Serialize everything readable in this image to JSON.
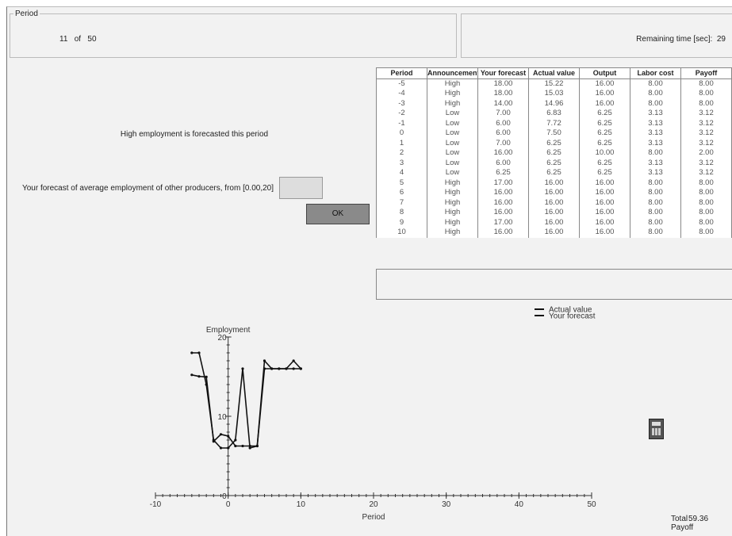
{
  "header": {
    "period_label": "Period",
    "current_period": "11",
    "of": "of",
    "total_periods": "50",
    "remaining_time_label": "Remaining time [sec]:",
    "remaining_time": "29"
  },
  "message": "High employment is forecasted this period",
  "forecast_prompt": "Your forecast of average employment of other producers, from [0.00,20]",
  "ok_button": "OK",
  "table": {
    "columns": [
      "Period",
      "Announcement",
      "Your forecast",
      "Actual value",
      "Output",
      "Labor cost",
      "Payoff"
    ],
    "rows": [
      [
        "-5",
        "High",
        "18.00",
        "15.22",
        "16.00",
        "8.00",
        "8.00"
      ],
      [
        "-4",
        "High",
        "18.00",
        "15.03",
        "16.00",
        "8.00",
        "8.00"
      ],
      [
        "-3",
        "High",
        "14.00",
        "14.96",
        "16.00",
        "8.00",
        "8.00"
      ],
      [
        "-2",
        "Low",
        "7.00",
        "6.83",
        "6.25",
        "3.13",
        "3.12"
      ],
      [
        "-1",
        "Low",
        "6.00",
        "7.72",
        "6.25",
        "3.13",
        "3.12"
      ],
      [
        "0",
        "Low",
        "6.00",
        "7.50",
        "6.25",
        "3.13",
        "3.12"
      ],
      [
        "1",
        "Low",
        "7.00",
        "6.25",
        "6.25",
        "3.13",
        "3.12"
      ],
      [
        "2",
        "Low",
        "16.00",
        "6.25",
        "10.00",
        "8.00",
        "2.00"
      ],
      [
        "3",
        "Low",
        "6.00",
        "6.25",
        "6.25",
        "3.13",
        "3.12"
      ],
      [
        "4",
        "Low",
        "6.25",
        "6.25",
        "6.25",
        "3.13",
        "3.12"
      ],
      [
        "5",
        "High",
        "17.00",
        "16.00",
        "16.00",
        "8.00",
        "8.00"
      ],
      [
        "6",
        "High",
        "16.00",
        "16.00",
        "16.00",
        "8.00",
        "8.00"
      ],
      [
        "7",
        "High",
        "16.00",
        "16.00",
        "16.00",
        "8.00",
        "8.00"
      ],
      [
        "8",
        "High",
        "16.00",
        "16.00",
        "16.00",
        "8.00",
        "8.00"
      ],
      [
        "9",
        "High",
        "17.00",
        "16.00",
        "16.00",
        "8.00",
        "8.00"
      ],
      [
        "10",
        "High",
        "16.00",
        "16.00",
        "16.00",
        "8.00",
        "8.00"
      ]
    ]
  },
  "chart": {
    "type": "line",
    "y_label": "Employment",
    "x_label": "Period",
    "x": [
      -5,
      -4,
      -3,
      -2,
      -1,
      0,
      1,
      2,
      3,
      4,
      5,
      6,
      7,
      8,
      9,
      10
    ],
    "series": [
      {
        "name": "Actual value",
        "color": "#111111",
        "values": [
          15.22,
          15.03,
          14.96,
          6.83,
          7.72,
          7.5,
          6.25,
          6.25,
          6.25,
          6.25,
          16,
          16,
          16,
          16,
          16,
          16
        ]
      },
      {
        "name": "Your forecast",
        "color": "#111111",
        "values": [
          18,
          18,
          14,
          7,
          6,
          6,
          7,
          16,
          6,
          6.25,
          17,
          16,
          16,
          16,
          17,
          16
        ]
      }
    ],
    "xlim": [
      -10,
      50
    ],
    "ylim": [
      0,
      20
    ],
    "xticks": [
      -10,
      0,
      10,
      20,
      30,
      40,
      50
    ],
    "yticks": [
      0,
      10,
      20
    ]
  },
  "total_payoff": {
    "label": "Total Payoff",
    "value": "59.36"
  }
}
